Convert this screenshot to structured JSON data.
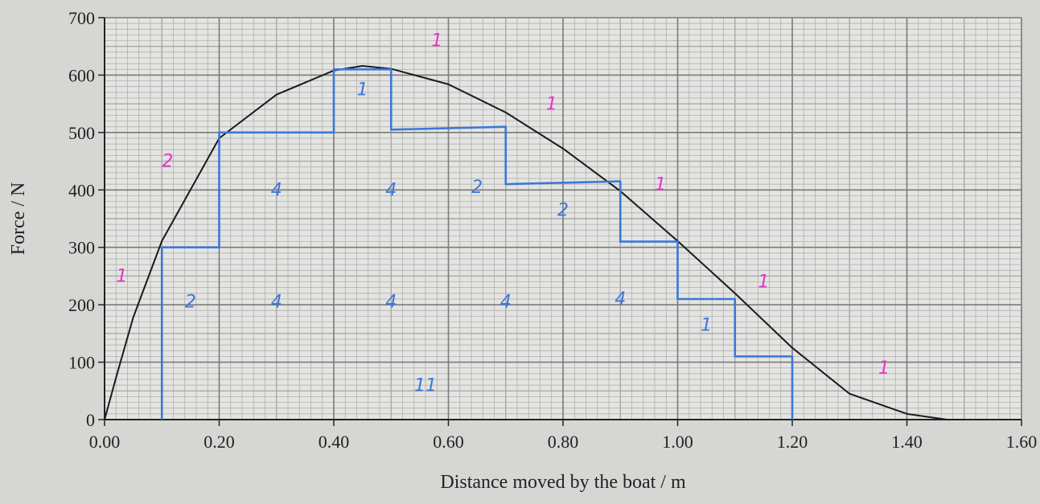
{
  "chart_data": {
    "type": "line",
    "x_label": "Distance moved by the boat / m",
    "y_label": "Force / N",
    "xlim": [
      0,
      1.6
    ],
    "ylim": [
      0,
      700
    ],
    "xticks": [
      {
        "value": 0,
        "label": "0.00"
      },
      {
        "value": 0.2,
        "label": "0.20"
      },
      {
        "value": 0.4,
        "label": "0.40"
      },
      {
        "value": 0.6,
        "label": "0.60"
      },
      {
        "value": 0.8,
        "label": "0.80"
      },
      {
        "value": 1.0,
        "label": "1.00"
      },
      {
        "value": 1.2,
        "label": "1.20"
      },
      {
        "value": 1.4,
        "label": "1.40"
      },
      {
        "value": 1.6,
        "label": "1.60"
      }
    ],
    "yticks": [
      0,
      100,
      200,
      300,
      400,
      500,
      600,
      700
    ],
    "grid": true,
    "minor_grid": 10,
    "series": [
      {
        "color": "#1a1a1a",
        "x": [
          0,
          0.02,
          0.05,
          0.1,
          0.2,
          0.3,
          0.4,
          0.45,
          0.5,
          0.6,
          0.7,
          0.8,
          0.9,
          1.0,
          1.1,
          1.2,
          1.3,
          1.4,
          1.47,
          1.5
        ],
        "values": [
          0,
          73,
          178,
          311,
          490,
          566,
          608,
          616,
          611,
          584,
          535,
          472,
          398,
          311,
          220,
          125,
          45,
          10,
          0,
          0
        ]
      },
      {
        "color": "#3b78d8",
        "x": [
          0.1,
          0.1,
          0.2,
          0.2,
          0.4,
          0.4,
          0.5,
          0.5,
          0.7,
          0.7,
          0.9,
          0.9,
          1.0,
          1.0,
          1.1,
          1.1,
          1.2,
          1.2
        ],
        "values": [
          0,
          300,
          300,
          500,
          500,
          610,
          610,
          505,
          510,
          410,
          415,
          310,
          310,
          210,
          210,
          110,
          110,
          0
        ]
      }
    ],
    "annotations": [
      {
        "text": "4",
        "x": 0.3,
        "y": 390,
        "color": "#3b78d8"
      },
      {
        "text": "4",
        "x": 0.5,
        "y": 390,
        "color": "#3b78d8"
      },
      {
        "text": "2",
        "x": 0.65,
        "y": 395,
        "color": "#3b78d8"
      },
      {
        "text": "2",
        "x": 0.8,
        "y": 355,
        "color": "#3b78d8"
      },
      {
        "text": "2",
        "x": 0.15,
        "y": 195,
        "color": "#3b78d8"
      },
      {
        "text": "4",
        "x": 0.3,
        "y": 195,
        "color": "#3b78d8"
      },
      {
        "text": "4",
        "x": 0.5,
        "y": 195,
        "color": "#3b78d8"
      },
      {
        "text": "4",
        "x": 0.7,
        "y": 195,
        "color": "#3b78d8"
      },
      {
        "text": "4",
        "x": 0.9,
        "y": 200,
        "color": "#3b78d8"
      },
      {
        "text": "1",
        "x": 1.05,
        "y": 155,
        "color": "#3b78d8"
      },
      {
        "text": "1",
        "x": 0.45,
        "y": 565,
        "color": "#3b78d8"
      },
      {
        "text": "11",
        "x": 0.56,
        "y": 50,
        "color": "#3b78d8"
      },
      {
        "text": "2",
        "x": 0.11,
        "y": 440,
        "color": "#e535c8"
      },
      {
        "text": "1",
        "x": 0.03,
        "y": 240,
        "color": "#e535c8"
      },
      {
        "text": "1",
        "x": 0.58,
        "y": 650,
        "color": "#e535c8"
      },
      {
        "text": "1",
        "x": 0.78,
        "y": 540,
        "color": "#e535c8"
      },
      {
        "text": "1",
        "x": 0.97,
        "y": 400,
        "color": "#e535c8"
      },
      {
        "text": "1",
        "x": 1.15,
        "y": 230,
        "color": "#e535c8"
      },
      {
        "text": "1",
        "x": 1.36,
        "y": 80,
        "color": "#e535c8"
      }
    ]
  }
}
